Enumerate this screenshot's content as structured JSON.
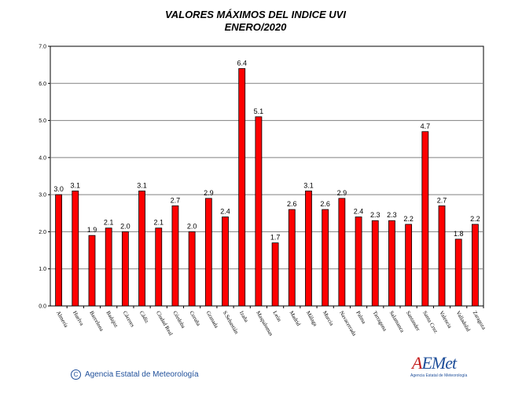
{
  "title": "VALORES MÁXIMOS DEL INDICE UVI",
  "subtitle": "ENERO/2020",
  "chart_data": {
    "type": "bar",
    "title": "VALORES MÁXIMOS DEL INDICE UVI",
    "subtitle": "ENERO/2020",
    "xlabel": "",
    "ylabel": "",
    "ylim": [
      0,
      7
    ],
    "yticks": [
      "0.0",
      "1.0",
      "2.0",
      "3.0",
      "4.0",
      "5.0",
      "6.0",
      "7.0"
    ],
    "grid": true,
    "legend": "none",
    "bar_color": "#ff0000",
    "categories": [
      "Almería",
      "Huelva",
      "Barcelona",
      "Badajoz",
      "Cáceres",
      "Cádiz",
      "Ciudad Real",
      "Córdoba",
      "Coruña",
      "Granada",
      "S.Sebastián",
      "Izaña",
      "Maspalomas",
      "León",
      "Madrid",
      "Málaga",
      "Murcia",
      "Navacerrada",
      "Palma",
      "Tarragona",
      "Salamanca",
      "Santander",
      "Santa Cruz",
      "Valencia",
      "Valladolid",
      "Zaragoza"
    ],
    "values": [
      3.0,
      3.1,
      1.9,
      2.1,
      2.0,
      3.1,
      2.1,
      2.7,
      2.0,
      2.9,
      2.4,
      6.4,
      5.1,
      1.7,
      2.6,
      3.1,
      2.6,
      2.9,
      2.4,
      2.3,
      2.3,
      2.2,
      4.7,
      2.7,
      1.8,
      2.2
    ],
    "value_labels": [
      "3.0",
      "3.1",
      "1.9",
      "2.1",
      "2.0",
      "3.1",
      "2.1",
      "2.7",
      "2.0",
      "2.9",
      "2.4",
      "6.4",
      "5.1",
      "1.7",
      "2.6",
      "3.1",
      "2.6",
      "2.9",
      "2.4",
      "2.3",
      "2.3",
      "2.2",
      "4.7",
      "2.7",
      "1.8",
      "2.2"
    ]
  },
  "footer": {
    "copyright_symbol": "C",
    "credit": "Agencia Estatal de Meteorología"
  },
  "logo": {
    "a_letter": "A",
    "rest": "EMet",
    "sub": "Agencia Estatal de Meteorología"
  }
}
